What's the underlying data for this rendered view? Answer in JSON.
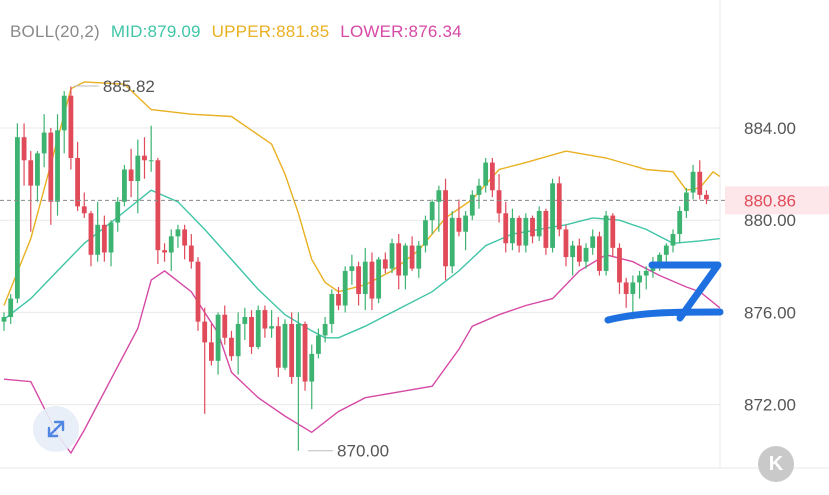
{
  "indicator": {
    "name": "BOLL(20,2)",
    "mid": "MID:879.09",
    "upper": "UPPER:881.85",
    "lower": "LOWER:876.34"
  },
  "colors": {
    "mid": "#3fc5a6",
    "upper": "#e9b021",
    "lower": "#d64aa6",
    "up_candle": "#3cb371",
    "down_candle": "#e04a59",
    "price_tag_bg": "#fde7ea",
    "price_tag_text": "#e04a59",
    "arrow": "#1e6fe0",
    "grid": "#e9e9e9",
    "axis_text": "#555555"
  },
  "current_price": "880.86",
  "overlay": {
    "expand_icon": "expand-arrows-icon",
    "k_button_label": "K",
    "annotation_arrow": "blue-arrow-icon"
  },
  "chart_data": {
    "type": "candlestick",
    "y_ticks": [
      "884.00",
      "880.00",
      "876.00",
      "872.00"
    ],
    "ylim": [
      869.0,
      887.0
    ],
    "y_tick_values": [
      884,
      880,
      876,
      872
    ],
    "current_price": 880.86,
    "annotations": [
      {
        "text": "885.82",
        "price": 885.82,
        "candle": 10
      },
      {
        "text": "870.00",
        "price": 870.0,
        "candle": 45
      }
    ],
    "candles": [
      [
        875.6,
        876.0,
        875.2,
        875.8
      ],
      [
        875.8,
        876.8,
        875.5,
        876.6
      ],
      [
        876.6,
        884.2,
        876.4,
        883.6
      ],
      [
        883.6,
        884.2,
        881.5,
        882.6
      ],
      [
        882.6,
        883.0,
        879.5,
        881.5
      ],
      [
        881.5,
        883.0,
        880.8,
        882.9
      ],
      [
        882.9,
        884.6,
        882.3,
        883.8
      ],
      [
        883.8,
        884.0,
        879.8,
        880.8
      ],
      [
        880.8,
        884.6,
        880.2,
        883.9
      ],
      [
        883.9,
        885.6,
        882.9,
        885.4
      ],
      [
        885.4,
        885.8,
        882.2,
        882.7
      ],
      [
        882.7,
        883.4,
        880.4,
        880.6
      ],
      [
        880.6,
        881.2,
        880.1,
        880.3
      ],
      [
        880.3,
        880.4,
        878.0,
        878.5
      ],
      [
        878.5,
        880.8,
        878.2,
        879.8
      ],
      [
        879.8,
        880.2,
        878.2,
        878.6
      ],
      [
        878.6,
        880.0,
        878.0,
        879.9
      ],
      [
        879.9,
        881.0,
        879.5,
        880.8
      ],
      [
        880.8,
        882.4,
        880.6,
        882.2
      ],
      [
        882.2,
        883.1,
        881.0,
        881.7
      ],
      [
        881.7,
        883.5,
        880.3,
        882.8
      ],
      [
        882.8,
        883.6,
        881.8,
        882.6
      ],
      [
        882.6,
        884.1,
        882.1,
        882.6
      ],
      [
        882.6,
        882.7,
        878.1,
        878.7
      ],
      [
        878.7,
        879.0,
        878.2,
        878.6
      ],
      [
        878.6,
        879.6,
        877.8,
        879.3
      ],
      [
        879.3,
        879.8,
        878.8,
        879.6
      ],
      [
        879.6,
        879.8,
        878.3,
        878.9
      ],
      [
        878.9,
        879.4,
        877.9,
        878.2
      ],
      [
        878.2,
        878.4,
        875.2,
        875.6
      ],
      [
        875.6,
        876.2,
        871.6,
        874.7
      ],
      [
        874.7,
        875.5,
        873.7,
        873.9
      ],
      [
        873.9,
        876.0,
        873.3,
        875.9
      ],
      [
        875.9,
        876.3,
        874.6,
        874.9
      ],
      [
        874.9,
        875.2,
        873.9,
        874.1
      ],
      [
        874.1,
        876.0,
        873.3,
        875.5
      ],
      [
        875.5,
        876.2,
        874.8,
        875.8
      ],
      [
        875.8,
        876.1,
        874.2,
        874.5
      ],
      [
        874.5,
        876.3,
        874.4,
        876.1
      ],
      [
        876.1,
        876.3,
        874.9,
        875.3
      ],
      [
        875.3,
        876.1,
        874.9,
        875.4
      ],
      [
        875.4,
        875.8,
        873.2,
        873.6
      ],
      [
        873.6,
        875.7,
        873.5,
        875.5
      ],
      [
        875.5,
        876.0,
        872.9,
        873.2
      ],
      [
        873.2,
        876.0,
        870.0,
        875.5
      ],
      [
        875.5,
        875.6,
        872.6,
        873.0
      ],
      [
        873.0,
        874.6,
        871.8,
        874.2
      ],
      [
        874.2,
        875.3,
        874.0,
        875.0
      ],
      [
        875.0,
        875.8,
        874.7,
        875.5
      ],
      [
        875.5,
        877.0,
        875.1,
        876.8
      ],
      [
        876.8,
        877.1,
        876.1,
        876.3
      ],
      [
        876.3,
        878.0,
        876.0,
        877.8
      ],
      [
        877.8,
        878.5,
        877.2,
        878.0
      ],
      [
        878.0,
        878.2,
        876.3,
        876.8
      ],
      [
        876.8,
        878.8,
        876.1,
        878.2
      ],
      [
        878.2,
        878.6,
        876.1,
        876.6
      ],
      [
        876.6,
        878.4,
        876.4,
        878.3
      ],
      [
        878.3,
        878.6,
        877.7,
        877.9
      ],
      [
        877.9,
        879.2,
        877.7,
        879.0
      ],
      [
        879.0,
        879.4,
        877.0,
        877.6
      ],
      [
        877.6,
        879.0,
        877.0,
        878.9
      ],
      [
        878.9,
        879.3,
        877.8,
        877.9
      ],
      [
        877.9,
        879.1,
        877.5,
        878.9
      ],
      [
        878.9,
        880.2,
        878.6,
        880.0
      ],
      [
        880.0,
        880.9,
        879.4,
        880.8
      ],
      [
        880.8,
        881.5,
        879.5,
        881.3
      ],
      [
        881.3,
        881.8,
        877.4,
        878.0
      ],
      [
        878.0,
        880.4,
        877.7,
        880.1
      ],
      [
        880.1,
        880.9,
        879.3,
        879.5
      ],
      [
        879.5,
        880.4,
        878.7,
        880.2
      ],
      [
        880.2,
        881.3,
        880.0,
        881.1
      ],
      [
        881.1,
        881.8,
        880.5,
        881.5
      ],
      [
        881.5,
        882.7,
        881.2,
        882.5
      ],
      [
        882.5,
        882.7,
        881.0,
        881.3
      ],
      [
        881.3,
        882.0,
        879.9,
        880.3
      ],
      [
        880.3,
        880.8,
        878.6,
        879.0
      ],
      [
        879.0,
        880.5,
        878.7,
        880.1
      ],
      [
        880.1,
        880.2,
        878.6,
        878.9
      ],
      [
        878.9,
        880.3,
        878.6,
        880.1
      ],
      [
        880.1,
        880.2,
        879.0,
        879.3
      ],
      [
        879.3,
        880.6,
        879.1,
        880.4
      ],
      [
        880.4,
        880.5,
        878.5,
        878.8
      ],
      [
        878.8,
        881.8,
        878.6,
        881.6
      ],
      [
        881.6,
        881.9,
        879.3,
        879.6
      ],
      [
        879.6,
        879.8,
        878.0,
        878.4
      ],
      [
        878.4,
        879.1,
        877.6,
        878.9
      ],
      [
        878.9,
        879.2,
        878.0,
        878.2
      ],
      [
        878.2,
        879.0,
        877.9,
        878.8
      ],
      [
        878.8,
        879.6,
        878.5,
        879.3
      ],
      [
        879.3,
        879.5,
        877.6,
        877.8
      ],
      [
        877.8,
        880.4,
        877.6,
        880.2
      ],
      [
        880.2,
        880.3,
        878.4,
        878.8
      ],
      [
        878.8,
        879.0,
        876.8,
        877.3
      ],
      [
        877.3,
        877.5,
        876.2,
        876.8
      ],
      [
        876.8,
        877.6,
        875.7,
        877.3
      ],
      [
        877.3,
        877.8,
        876.6,
        877.6
      ],
      [
        877.6,
        878.0,
        877.0,
        877.8
      ],
      [
        877.8,
        878.4,
        877.5,
        878.1
      ],
      [
        878.1,
        878.6,
        877.8,
        878.5
      ],
      [
        878.5,
        879.0,
        878.2,
        878.9
      ],
      [
        878.9,
        879.6,
        878.6,
        879.4
      ],
      [
        879.4,
        880.6,
        879.0,
        880.4
      ],
      [
        880.4,
        881.4,
        880.1,
        881.2
      ],
      [
        881.2,
        882.4,
        880.9,
        882.1
      ],
      [
        882.1,
        882.6,
        880.9,
        881.1
      ],
      [
        881.1,
        881.3,
        880.7,
        880.9
      ]
    ],
    "mid_series": [
      [
        0,
        875.7
      ],
      [
        4,
        876.6
      ],
      [
        8,
        877.8
      ],
      [
        12,
        879.0
      ],
      [
        16,
        879.9
      ],
      [
        22,
        881.3
      ],
      [
        26,
        880.8
      ],
      [
        30,
        879.6
      ],
      [
        34,
        878.3
      ],
      [
        38,
        877.0
      ],
      [
        42,
        875.9
      ],
      [
        46,
        875.2
      ],
      [
        48,
        874.9
      ],
      [
        50,
        874.9
      ],
      [
        54,
        875.4
      ],
      [
        60,
        876.3
      ],
      [
        64,
        876.9
      ],
      [
        68,
        877.8
      ],
      [
        72,
        878.9
      ],
      [
        76,
        879.4
      ],
      [
        80,
        879.6
      ],
      [
        84,
        879.8
      ],
      [
        88,
        880.1
      ],
      [
        92,
        880.0
      ],
      [
        96,
        879.6
      ],
      [
        100,
        879.0
      ],
      [
        104,
        879.1
      ],
      [
        107,
        879.2
      ]
    ],
    "upper_series": [
      [
        0,
        876.3
      ],
      [
        4,
        879.2
      ],
      [
        8,
        883.5
      ],
      [
        10,
        885.7
      ],
      [
        12,
        886.0
      ],
      [
        18,
        885.9
      ],
      [
        22,
        884.8
      ],
      [
        28,
        884.6
      ],
      [
        34,
        884.5
      ],
      [
        40,
        883.3
      ],
      [
        42,
        882.0
      ],
      [
        44,
        880.3
      ],
      [
        46,
        878.3
      ],
      [
        48,
        877.3
      ],
      [
        50,
        876.9
      ],
      [
        54,
        877.2
      ],
      [
        58,
        877.8
      ],
      [
        62,
        878.7
      ],
      [
        66,
        880.1
      ],
      [
        70,
        880.9
      ],
      [
        74,
        882.2
      ],
      [
        78,
        882.5
      ],
      [
        84,
        883.0
      ],
      [
        90,
        882.7
      ],
      [
        96,
        882.2
      ],
      [
        100,
        882.1
      ],
      [
        102,
        881.3
      ],
      [
        104,
        881.4
      ],
      [
        106,
        882.1
      ],
      [
        107,
        881.9
      ]
    ],
    "lower_series": [
      [
        0,
        873.1
      ],
      [
        4,
        873.0
      ],
      [
        8,
        870.7
      ],
      [
        10,
        869.9
      ],
      [
        12,
        870.9
      ],
      [
        16,
        873.1
      ],
      [
        20,
        875.3
      ],
      [
        22,
        877.4
      ],
      [
        24,
        877.8
      ],
      [
        28,
        876.9
      ],
      [
        32,
        875.1
      ],
      [
        34,
        873.4
      ],
      [
        38,
        872.3
      ],
      [
        42,
        871.5
      ],
      [
        46,
        870.8
      ],
      [
        50,
        871.7
      ],
      [
        54,
        872.3
      ],
      [
        60,
        872.6
      ],
      [
        64,
        872.8
      ],
      [
        68,
        874.4
      ],
      [
        70,
        875.4
      ],
      [
        74,
        875.9
      ],
      [
        78,
        876.3
      ],
      [
        82,
        876.6
      ],
      [
        86,
        877.8
      ],
      [
        90,
        878.5
      ],
      [
        94,
        878.2
      ],
      [
        98,
        877.6
      ],
      [
        102,
        877.1
      ],
      [
        104,
        876.9
      ],
      [
        107,
        876.2
      ]
    ]
  }
}
